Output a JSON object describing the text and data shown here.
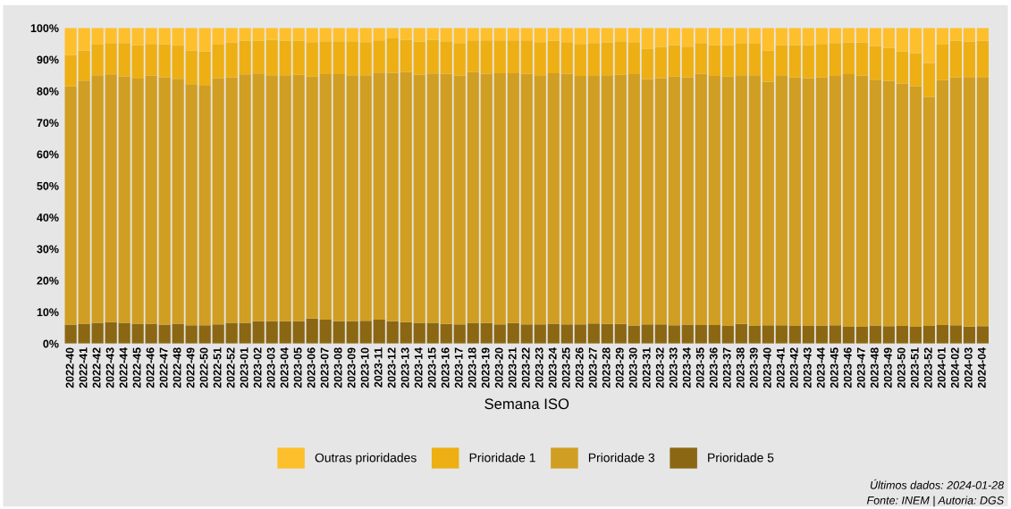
{
  "chart_data": {
    "type": "bar",
    "stacked": true,
    "xlabel": "Semana ISO",
    "categories": [
      "2022-40",
      "2022-41",
      "2022-42",
      "2022-43",
      "2022-44",
      "2022-45",
      "2022-46",
      "2022-47",
      "2022-48",
      "2022-49",
      "2022-50",
      "2022-51",
      "2022-52",
      "2023-01",
      "2023-02",
      "2023-03",
      "2023-04",
      "2023-05",
      "2023-06",
      "2023-07",
      "2023-08",
      "2023-09",
      "2023-10",
      "2023-11",
      "2023-12",
      "2023-13",
      "2023-14",
      "2023-15",
      "2023-16",
      "2023-17",
      "2023-18",
      "2023-19",
      "2023-20",
      "2023-21",
      "2023-22",
      "2023-23",
      "2023-24",
      "2023-25",
      "2023-26",
      "2023-27",
      "2023-28",
      "2023-29",
      "2023-30",
      "2023-31",
      "2023-32",
      "2023-33",
      "2023-34",
      "2023-35",
      "2023-36",
      "2023-37",
      "2023-38",
      "2023-39",
      "2023-40",
      "2023-41",
      "2023-42",
      "2023-43",
      "2023-44",
      "2023-45",
      "2023-46",
      "2023-47",
      "2023-48",
      "2023-49",
      "2023-50",
      "2023-51",
      "2023-52",
      "2024-01",
      "2024-02",
      "2024-03",
      "2024-04"
    ],
    "series": [
      {
        "name": "Prioridade 5",
        "color": "#8b6713",
        "values": [
          6.0,
          6.3,
          6.6,
          6.8,
          6.6,
          6.3,
          6.3,
          6.0,
          6.3,
          5.8,
          5.8,
          6.1,
          6.6,
          6.6,
          7.1,
          7.1,
          7.1,
          7.1,
          7.9,
          7.6,
          7.1,
          7.1,
          7.2,
          7.6,
          7.1,
          6.8,
          6.6,
          6.6,
          6.2,
          6.1,
          6.6,
          6.5,
          6.1,
          6.5,
          6.1,
          6.1,
          6.3,
          6.1,
          6.1,
          6.4,
          6.2,
          6.2,
          5.7,
          6.1,
          6.1,
          5.8,
          6.0,
          5.9,
          5.9,
          5.6,
          6.2,
          5.6,
          5.8,
          5.8,
          5.6,
          5.6,
          5.7,
          5.8,
          5.3,
          5.3,
          5.7,
          5.5,
          5.6,
          5.3,
          5.6,
          5.9,
          5.8,
          5.4,
          5.5
        ]
      },
      {
        "name": "Prioridade 3",
        "color": "#d09e22",
        "values": [
          75.5,
          77.0,
          78.4,
          78.5,
          78.1,
          77.7,
          78.6,
          78.4,
          77.6,
          76.4,
          75.9,
          78.0,
          77.8,
          78.7,
          78.5,
          77.9,
          77.9,
          78.1,
          76.7,
          77.8,
          78.3,
          77.9,
          77.8,
          78.3,
          78.7,
          79.2,
          78.6,
          79.0,
          79.3,
          78.8,
          79.4,
          79.0,
          79.6,
          79.2,
          79.4,
          78.9,
          79.4,
          79.4,
          78.7,
          78.6,
          78.8,
          79.0,
          79.7,
          77.7,
          78.0,
          78.8,
          78.4,
          79.6,
          78.9,
          79.0,
          78.8,
          79.4,
          77.2,
          79.2,
          78.7,
          78.5,
          78.6,
          79.0,
          80.1,
          79.6,
          77.9,
          77.7,
          76.8,
          76.2,
          72.5,
          77.6,
          78.5,
          79.1,
          79.0
        ]
      },
      {
        "name": "Prioridade 1",
        "color": "#edaf13",
        "values": [
          10.0,
          9.6,
          9.7,
          9.9,
          10.5,
          10.5,
          10.0,
          10.4,
          10.7,
          10.7,
          10.8,
          10.6,
          11.0,
          10.7,
          10.4,
          11.3,
          11.0,
          10.8,
          10.9,
          10.4,
          10.4,
          10.8,
          10.5,
          10.2,
          10.9,
          10.3,
          10.5,
          10.7,
          10.3,
          10.3,
          10.1,
          10.6,
          10.4,
          10.4,
          10.6,
          10.5,
          10.2,
          10.0,
          10.1,
          10.2,
          10.4,
          10.6,
          10.1,
          9.6,
          9.9,
          10.0,
          9.7,
          9.7,
          9.8,
          10.0,
          10.0,
          10.0,
          9.9,
          9.6,
          10.3,
          10.5,
          10.6,
          10.4,
          10.0,
          10.5,
          10.6,
          10.5,
          10.1,
          10.5,
          10.8,
          11.2,
          11.7,
          11.2,
          11.4
        ]
      },
      {
        "name": "Outras prioridades",
        "color": "#fdbf2c",
        "values": [
          8.5,
          7.1,
          5.3,
          4.8,
          4.8,
          5.5,
          5.1,
          5.2,
          5.4,
          7.1,
          7.5,
          5.3,
          4.6,
          4.0,
          4.0,
          3.7,
          4.0,
          4.0,
          4.5,
          4.2,
          4.2,
          4.2,
          4.5,
          3.9,
          3.3,
          3.7,
          4.3,
          3.7,
          4.2,
          4.8,
          3.9,
          3.9,
          3.9,
          3.9,
          3.9,
          4.5,
          4.1,
          4.5,
          5.1,
          4.8,
          4.6,
          4.2,
          4.5,
          6.6,
          6.0,
          5.4,
          5.9,
          4.8,
          5.4,
          5.4,
          5.0,
          5.0,
          7.1,
          5.4,
          5.4,
          5.4,
          5.1,
          4.8,
          4.6,
          4.6,
          5.8,
          6.3,
          7.5,
          8.0,
          11.1,
          5.3,
          4.0,
          4.3,
          4.1
        ]
      }
    ],
    "ylim": [
      0,
      100
    ],
    "yticks": [
      {
        "value": 0,
        "label": "0%"
      },
      {
        "value": 10,
        "label": "10%"
      },
      {
        "value": 20,
        "label": "20%"
      },
      {
        "value": 30,
        "label": "30%"
      },
      {
        "value": 40,
        "label": "40%"
      },
      {
        "value": 50,
        "label": "50%"
      },
      {
        "value": 60,
        "label": "60%"
      },
      {
        "value": 70,
        "label": "70%"
      },
      {
        "value": 80,
        "label": "80%"
      },
      {
        "value": 90,
        "label": "90%"
      },
      {
        "value": 100,
        "label": "100%"
      }
    ],
    "legend": "bottom",
    "annotations": [
      "Últimos dados: 2024-01-28",
      "Fonte: INEM | Autoria: DGS"
    ]
  }
}
